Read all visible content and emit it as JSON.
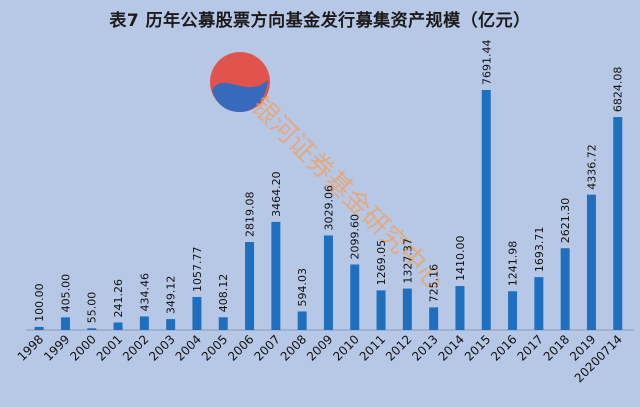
{
  "title": "表7  历年公募股票方向基金发行募集资产规模（亿元）",
  "watermark": "银河证券基金研究中心",
  "colors": {
    "background": "#b7c8e6",
    "bar": "#1f6fbf"
  },
  "chart_data": {
    "type": "bar",
    "title": "表7  历年公募股票方向基金发行募集资产规模（亿元）",
    "categories": [
      "1998",
      "1999",
      "2000",
      "2001",
      "2002",
      "2003",
      "2004",
      "2005",
      "2006",
      "2007",
      "2008",
      "2009",
      "2010",
      "2011",
      "2012",
      "2013",
      "2014",
      "2015",
      "2016",
      "2017",
      "2018",
      "2019",
      "20200714"
    ],
    "values": [
      100.0,
      405.0,
      55.0,
      241.26,
      434.46,
      349.12,
      1057.77,
      408.12,
      2819.08,
      3464.2,
      594.03,
      3029.06,
      2099.6,
      1269.05,
      1327.37,
      725.16,
      1410.0,
      7691.44,
      1241.98,
      1693.71,
      2621.3,
      4336.72,
      6824.08
    ],
    "value_labels": [
      "100.00",
      "405.00",
      "55.00",
      "241.26",
      "434.46",
      "349.12",
      "1057.77",
      "408.12",
      "2819.08",
      "3464.20",
      "594.03",
      "3029.06",
      "2099.60",
      "1269.05",
      "1327.37",
      "725.16",
      "1410.00",
      "7691.44",
      "1241.98",
      "1693.71",
      "2621.30",
      "4336.72",
      "6824.08"
    ],
    "xlabel": "",
    "ylabel": "",
    "ylim": [
      0,
      7691.44
    ],
    "grid": false,
    "legend": "none"
  }
}
